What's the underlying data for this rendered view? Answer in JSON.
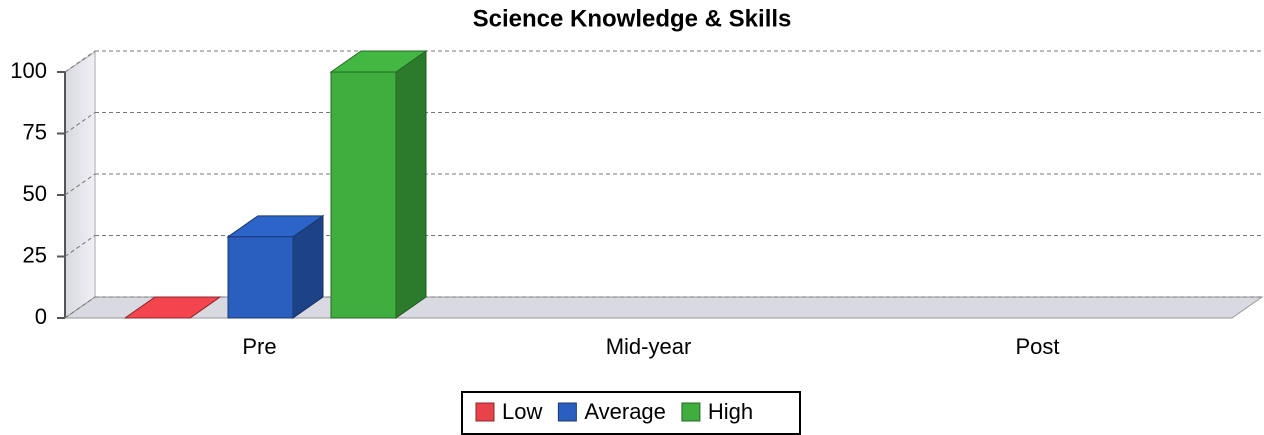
{
  "chart_data": {
    "type": "bar3d",
    "title": "Science Knowledge & Skills",
    "categories": [
      "Pre",
      "Mid-year",
      "Post"
    ],
    "series": [
      {
        "name": "Low",
        "color": "#e8424a",
        "values": [
          0,
          null,
          null
        ]
      },
      {
        "name": "Average",
        "color": "#2a5fc0",
        "values": [
          33,
          null,
          null
        ]
      },
      {
        "name": "High",
        "color": "#3fae3f",
        "values": [
          100,
          null,
          null
        ]
      }
    ],
    "ylim": [
      0,
      100
    ],
    "yticks": [
      0,
      25,
      50,
      75,
      100
    ],
    "grid": true,
    "legend": "bottom"
  }
}
